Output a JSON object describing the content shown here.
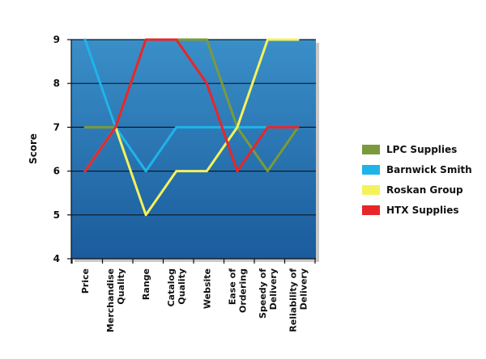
{
  "chart_data": {
    "type": "line",
    "title": "",
    "ylabel": "Score",
    "xlabel": "",
    "ylim": [
      4,
      9
    ],
    "yticks": [
      4,
      5,
      6,
      7,
      8,
      9
    ],
    "grid": true,
    "legend_position": "right",
    "categories": [
      [
        "Price"
      ],
      [
        "Merchandise",
        "Quality"
      ],
      [
        "Range"
      ],
      [
        "Catalog",
        "Quality"
      ],
      [
        "Website"
      ],
      [
        "Ease of",
        "Ordering"
      ],
      [
        "Speedy of",
        "Delivery"
      ],
      [
        "Reliability of",
        "Delivery"
      ]
    ],
    "series": [
      {
        "name": "LPC Supplies",
        "color": "#7a9a3c",
        "values": [
          7,
          7,
          9,
          9,
          9,
          7,
          6,
          7
        ]
      },
      {
        "name": "Barnwick Smith",
        "color": "#1fb4e8",
        "values": [
          9,
          7,
          6,
          7,
          7,
          7,
          7,
          7
        ]
      },
      {
        "name": "Roskan Group",
        "color": "#f4f25a",
        "values": [
          6,
          7,
          5,
          6,
          6,
          7,
          9,
          9
        ]
      },
      {
        "name": "HTX Supplies",
        "color": "#e8262a",
        "values": [
          6,
          7,
          9,
          9,
          8,
          6,
          7,
          7
        ]
      }
    ],
    "plot_background": [
      "#3a8fc8",
      "#1a5b9c"
    ]
  }
}
